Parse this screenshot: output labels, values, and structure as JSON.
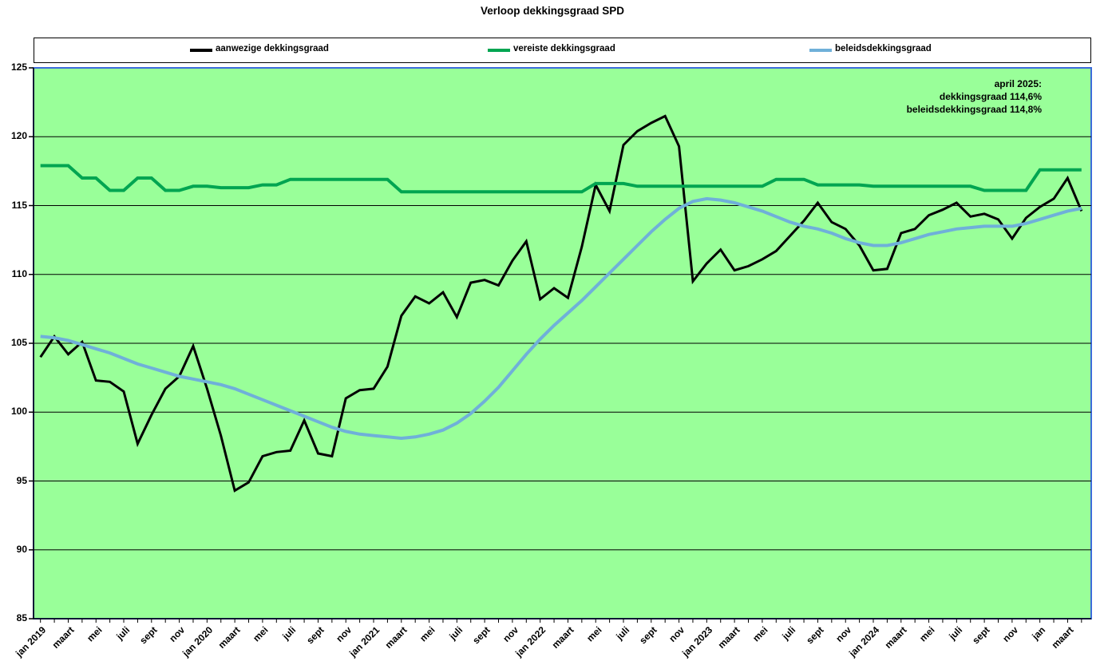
{
  "title": "Verloop dekkingsgraad SPD",
  "legend": {
    "items": [
      {
        "label": "aanwezige dekkingsgraad",
        "color": "#000000"
      },
      {
        "label": "vereiste dekkingsgraad",
        "color": "#00A551"
      },
      {
        "label": "beleidsdekkingsgraad",
        "color": "#6FB0D9"
      }
    ]
  },
  "annotation": {
    "lines": [
      "april 2025:",
      "dekkingsgraad 114,6%",
      "beleidsdekkingsgraad 114,8%"
    ]
  },
  "axes": {
    "y": {
      "min": 85,
      "max": 125,
      "step": 5
    },
    "x": {
      "tick_labels": [
        "jan 2019",
        "maart",
        "mei",
        "juli",
        "sept",
        "nov",
        "jan 2020",
        "maart",
        "mei",
        "juli",
        "sept",
        "nov",
        "jan 2021",
        "maart",
        "mei",
        "juli",
        "sept",
        "nov",
        "jan 2022",
        "maart",
        "mei",
        "juli",
        "sept",
        "nov",
        "jan 2023",
        "maart",
        "mei",
        "juli",
        "sept",
        "nov",
        "jan 2024",
        "maart",
        "mei",
        "juli",
        "sept",
        "nov",
        "jan",
        "maart"
      ]
    }
  },
  "chart_data": {
    "type": "line",
    "title": "Verloop dekkingsgraad SPD",
    "x_start": "jan 2019",
    "x_end": "april 2025",
    "x_interval": "month",
    "x_points": 76,
    "ylim": [
      85,
      125
    ],
    "grid": true,
    "plot_bg": "#99FF99",
    "border_color": "#3D6BDB",
    "grid_color": "#000000",
    "legend_position": "top",
    "series": [
      {
        "name": "aanwezige dekkingsgraad",
        "color": "#000000",
        "values": [
          104.0,
          105.5,
          104.2,
          105.1,
          102.3,
          102.2,
          101.5,
          97.7,
          99.8,
          101.7,
          102.6,
          104.8,
          101.7,
          98.3,
          94.3,
          94.9,
          96.8,
          97.1,
          97.2,
          99.4,
          97.0,
          96.8,
          101.0,
          101.6,
          101.7,
          103.3,
          107.0,
          108.4,
          107.9,
          108.7,
          106.9,
          109.4,
          109.6,
          109.2,
          111.0,
          112.4,
          108.2,
          109.0,
          108.3,
          112.0,
          116.5,
          114.6,
          119.4,
          120.4,
          121.0,
          121.5,
          119.3,
          109.5,
          110.8,
          111.8,
          110.3,
          110.6,
          111.1,
          111.7,
          112.8,
          113.9,
          115.2,
          113.8,
          113.3,
          112.1,
          110.3,
          110.4,
          113.0,
          113.3,
          114.3,
          114.7,
          115.2,
          114.2,
          114.4,
          114.0,
          112.6,
          114.1,
          114.9,
          115.5,
          117.0,
          114.6
        ]
      },
      {
        "name": "vereiste dekkingsgraad",
        "color": "#00A551",
        "values": [
          117.9,
          117.9,
          117.9,
          117.0,
          117.0,
          116.1,
          116.1,
          117.0,
          117.0,
          116.1,
          116.1,
          116.4,
          116.4,
          116.3,
          116.3,
          116.3,
          116.5,
          116.5,
          116.9,
          116.9,
          116.9,
          116.9,
          116.9,
          116.9,
          116.9,
          116.9,
          116.0,
          116.0,
          116.0,
          116.0,
          116.0,
          116.0,
          116.0,
          116.0,
          116.0,
          116.0,
          116.0,
          116.0,
          116.0,
          116.0,
          116.6,
          116.6,
          116.6,
          116.4,
          116.4,
          116.4,
          116.4,
          116.4,
          116.4,
          116.4,
          116.4,
          116.4,
          116.4,
          116.9,
          116.9,
          116.9,
          116.5,
          116.5,
          116.5,
          116.5,
          116.4,
          116.4,
          116.4,
          116.4,
          116.4,
          116.4,
          116.4,
          116.4,
          116.1,
          116.1,
          116.1,
          116.1,
          117.6,
          117.6,
          117.6,
          117.6
        ]
      },
      {
        "name": "beleidsdekkingsgraad",
        "color": "#6FB0D9",
        "values": [
          105.5,
          105.4,
          105.2,
          104.9,
          104.6,
          104.3,
          103.9,
          103.5,
          103.2,
          102.9,
          102.6,
          102.4,
          102.2,
          102.0,
          101.7,
          101.3,
          100.9,
          100.5,
          100.1,
          99.7,
          99.3,
          98.9,
          98.6,
          98.4,
          98.3,
          98.2,
          98.1,
          98.2,
          98.4,
          98.7,
          99.2,
          99.9,
          100.8,
          101.8,
          103.0,
          104.2,
          105.3,
          106.3,
          107.2,
          108.1,
          109.1,
          110.1,
          111.1,
          112.1,
          113.1,
          114.0,
          114.8,
          115.3,
          115.5,
          115.4,
          115.2,
          114.9,
          114.6,
          114.2,
          113.8,
          113.5,
          113.3,
          113.0,
          112.6,
          112.3,
          112.1,
          112.1,
          112.3,
          112.6,
          112.9,
          113.1,
          113.3,
          113.4,
          113.5,
          113.5,
          113.5,
          113.7,
          114.0,
          114.3,
          114.6,
          114.8
        ]
      }
    ]
  }
}
